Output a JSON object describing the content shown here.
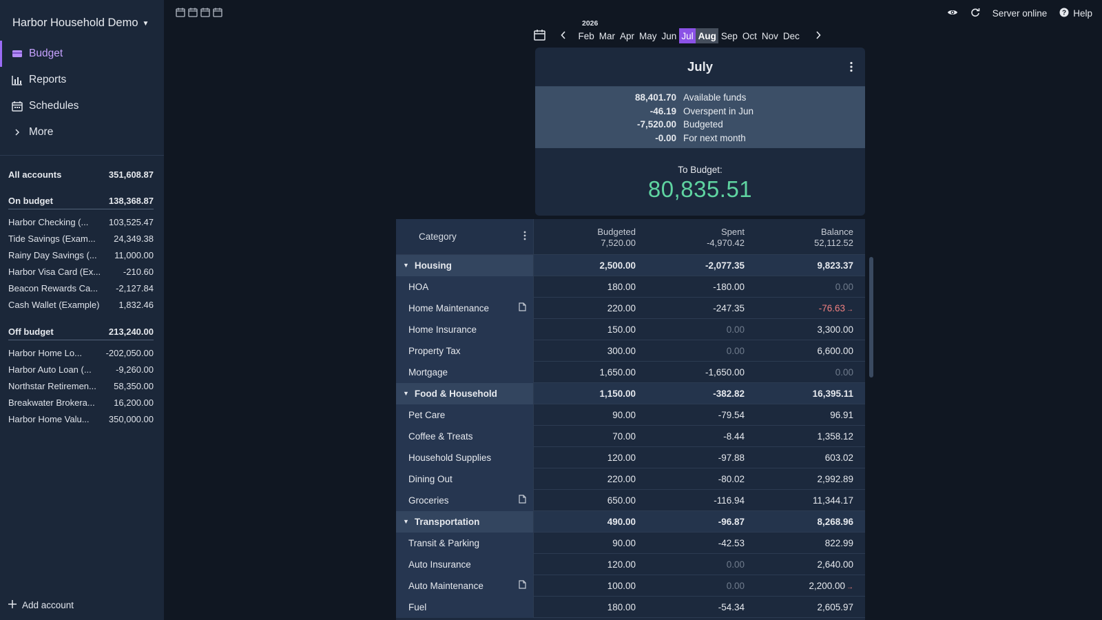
{
  "sidebar": {
    "budget_name": "Harbor Household Demo",
    "nav": [
      {
        "label": "Budget",
        "icon": "wallet-icon",
        "active": true
      },
      {
        "label": "Reports",
        "icon": "bar-chart-icon",
        "active": false
      },
      {
        "label": "Schedules",
        "icon": "calendar-icon",
        "active": false
      },
      {
        "label": "More",
        "icon": "chevron-right-icon",
        "active": false
      }
    ],
    "all_accounts": {
      "label": "All accounts",
      "amount": "351,608.87"
    },
    "on_budget": {
      "label": "On budget",
      "amount": "138,368.87"
    },
    "on_budget_accounts": [
      {
        "name": "Harbor Checking (...",
        "amount": "103,525.47"
      },
      {
        "name": "Tide Savings (Exam...",
        "amount": "24,349.38"
      },
      {
        "name": "Rainy Day Savings (...",
        "amount": "11,000.00"
      },
      {
        "name": "Harbor Visa Card (Ex...",
        "amount": "-210.60"
      },
      {
        "name": "Beacon Rewards Ca...",
        "amount": "-2,127.84"
      },
      {
        "name": "Cash Wallet (Example)",
        "amount": "1,832.46"
      }
    ],
    "off_budget": {
      "label": "Off budget",
      "amount": "213,240.00"
    },
    "off_budget_accounts": [
      {
        "name": "Harbor Home Lo...",
        "amount": "-202,050.00"
      },
      {
        "name": "Harbor Auto Loan (...",
        "amount": "-9,260.00"
      },
      {
        "name": "Northstar Retiremen...",
        "amount": "58,350.00"
      },
      {
        "name": "Breakwater Brokera...",
        "amount": "16,200.00"
      },
      {
        "name": "Harbor Home Valu...",
        "amount": "350,000.00"
      }
    ],
    "add_account": "Add account"
  },
  "topbar": {
    "server_status": "Server online",
    "help": "Help"
  },
  "month_picker": {
    "year": "2026",
    "months": [
      "Feb",
      "Mar",
      "Apr",
      "May",
      "Jun",
      "Jul",
      "Aug",
      "Sep",
      "Oct",
      "Nov",
      "Dec"
    ],
    "selected": [
      "Jul",
      "Aug"
    ]
  },
  "summary": {
    "month": "July",
    "stats": [
      {
        "value": "88,401.70",
        "label": "Available funds"
      },
      {
        "value": "-46.19",
        "label": "Overspent in Jun"
      },
      {
        "value": "-7,520.00",
        "label": "Budgeted"
      },
      {
        "value": "-0.00",
        "label": "For next month"
      }
    ],
    "to_budget_label": "To Budget:",
    "to_budget_amount": "80,835.51"
  },
  "table": {
    "header": {
      "category": "Category",
      "budgeted_label": "Budgeted",
      "budgeted_total": "7,520.00",
      "spent_label": "Spent",
      "spent_total": "-4,970.42",
      "balance_label": "Balance",
      "balance_total": "52,112.52"
    },
    "rows": [
      {
        "type": "group",
        "name": "Housing",
        "budgeted": "2,500.00",
        "spent": "-2,077.35",
        "balance": "9,823.37"
      },
      {
        "type": "cat",
        "name": "HOA",
        "budgeted": "180.00",
        "spent": "-180.00",
        "balance": "0.00",
        "balance_zero": true
      },
      {
        "type": "cat",
        "name": "Home Maintenance",
        "note": true,
        "budgeted": "220.00",
        "spent": "-247.35",
        "balance": "-76.63",
        "balance_neg": true,
        "arrow": true
      },
      {
        "type": "cat",
        "name": "Home Insurance",
        "budgeted": "150.00",
        "spent": "0.00",
        "spent_zero": true,
        "balance": "3,300.00"
      },
      {
        "type": "cat",
        "name": "Property Tax",
        "budgeted": "300.00",
        "spent": "0.00",
        "spent_zero": true,
        "balance": "6,600.00"
      },
      {
        "type": "cat",
        "name": "Mortgage",
        "budgeted": "1,650.00",
        "spent": "-1,650.00",
        "balance": "0.00",
        "balance_zero": true
      },
      {
        "type": "group",
        "name": "Food & Household",
        "budgeted": "1,150.00",
        "spent": "-382.82",
        "balance": "16,395.11"
      },
      {
        "type": "cat",
        "name": "Pet Care",
        "budgeted": "90.00",
        "spent": "-79.54",
        "balance": "96.91"
      },
      {
        "type": "cat",
        "name": "Coffee & Treats",
        "budgeted": "70.00",
        "spent": "-8.44",
        "balance": "1,358.12"
      },
      {
        "type": "cat",
        "name": "Household Supplies",
        "budgeted": "120.00",
        "spent": "-97.88",
        "balance": "603.02"
      },
      {
        "type": "cat",
        "name": "Dining Out",
        "budgeted": "220.00",
        "spent": "-80.02",
        "balance": "2,992.89"
      },
      {
        "type": "cat",
        "name": "Groceries",
        "note": true,
        "budgeted": "650.00",
        "spent": "-116.94",
        "balance": "11,344.17"
      },
      {
        "type": "group",
        "name": "Transportation",
        "budgeted": "490.00",
        "spent": "-96.87",
        "balance": "8,268.96"
      },
      {
        "type": "cat",
        "name": "Transit & Parking",
        "budgeted": "90.00",
        "spent": "-42.53",
        "balance": "822.99"
      },
      {
        "type": "cat",
        "name": "Auto Insurance",
        "budgeted": "120.00",
        "spent": "0.00",
        "spent_zero": true,
        "balance": "2,640.00"
      },
      {
        "type": "cat",
        "name": "Auto Maintenance",
        "note": true,
        "budgeted": "100.00",
        "spent": "0.00",
        "spent_zero": true,
        "balance": "2,200.00",
        "arrow": true
      },
      {
        "type": "cat",
        "name": "Fuel",
        "budgeted": "180.00",
        "spent": "-54.34",
        "balance": "2,605.97"
      }
    ]
  },
  "colors": {
    "accent": "#8b52e6",
    "positive": "#5fd4a1",
    "negative": "#f08080",
    "sidebar_bg": "#1b2739",
    "page_bg": "#101722"
  }
}
